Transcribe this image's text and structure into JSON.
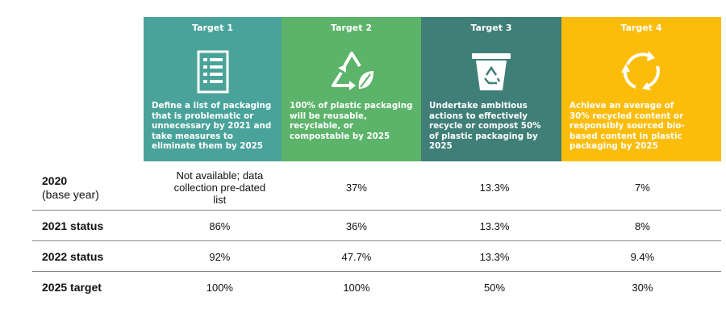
{
  "targets": [
    {
      "title": "Target 1",
      "icon": "checklist-icon",
      "color": "#4aa39a",
      "desc_lines": [
        "Define a list of packaging",
        "that is problematic or",
        "unnecessary by 2021 and",
        "take measures to",
        "eliminate them by 2025"
      ]
    },
    {
      "title": "Target 2",
      "icon": "recycle-leaf-icon",
      "color": "#5cb36a",
      "desc_lines": [
        "100% of plastic packaging",
        "will be reusable,",
        "recyclable, or",
        "compostable by 2025"
      ]
    },
    {
      "title": "Target 3",
      "icon": "recycle-bin-icon",
      "color": "#3f7f77",
      "desc_lines": [
        "Undertake ambitious",
        "actions to effectively",
        "recycle or compost 50%",
        "of plastic packaging by",
        "2025"
      ]
    },
    {
      "title": "Target 4",
      "icon": "recycle-arrows-icon",
      "color": "#fbbd0a",
      "desc_lines": [
        "Achieve an average of",
        "30% recycled content or",
        "responsibly sourced bio-",
        "based content in plastic",
        "packaging by 2025"
      ]
    }
  ],
  "rows": [
    {
      "label": "2020",
      "sublabel": "(base year)",
      "values": [
        "Not available; data collection pre-dated list",
        "37%",
        "13.3%",
        "7%"
      ],
      "value0_lines": [
        "Not available; data",
        "collection pre-dated",
        "list"
      ]
    },
    {
      "label": "2021 status",
      "values": [
        "86%",
        "36%",
        "13.3%",
        "8%"
      ]
    },
    {
      "label": "2022 status",
      "values": [
        "92%",
        "47.7%",
        "13.3%",
        "9.4%"
      ]
    },
    {
      "label": "2025 target",
      "values": [
        "100%",
        "100%",
        "50%",
        "30%"
      ]
    }
  ]
}
